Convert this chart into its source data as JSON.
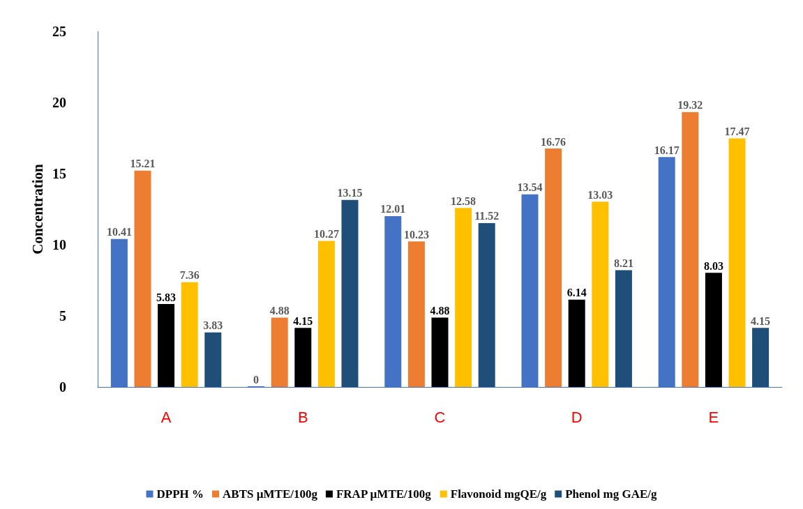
{
  "chart_data": {
    "type": "bar",
    "ylabel": "Concentration",
    "categories": [
      "A",
      "B",
      "C",
      "D",
      "E"
    ],
    "series": [
      {
        "name": "DPPH %",
        "color": "#4472c4",
        "values": [
          10.41,
          0,
          12.01,
          13.54,
          16.17
        ]
      },
      {
        "name": "ABTS µMTE/100g",
        "color": "#ed7d31",
        "values": [
          15.21,
          4.88,
          10.23,
          16.76,
          19.32
        ]
      },
      {
        "name": "FRAP µMTE/100g",
        "color": "#000000",
        "values": [
          5.83,
          4.15,
          4.88,
          6.14,
          8.03
        ]
      },
      {
        "name": "Flavonoid mgQE/g",
        "color": "#ffc000",
        "values": [
          7.36,
          10.27,
          12.58,
          13.03,
          17.47
        ]
      },
      {
        "name": "Phenol mg GAE/g",
        "color": "#1f4e79",
        "values": [
          3.83,
          13.15,
          11.52,
          8.21,
          4.15
        ]
      }
    ],
    "ylim": [
      0,
      25
    ],
    "yticks": [
      0,
      5,
      10,
      15,
      20,
      25
    ],
    "grid": false,
    "legend": "bottom",
    "data_labels": true
  }
}
